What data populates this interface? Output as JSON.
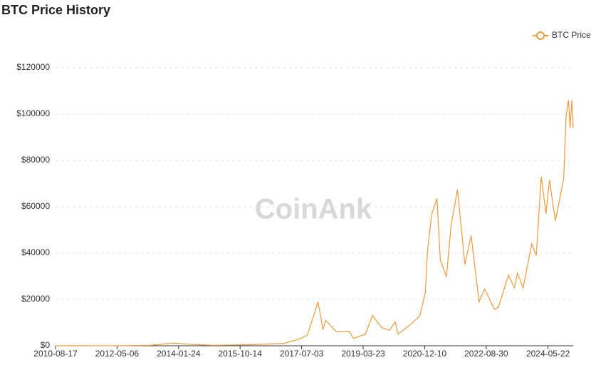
{
  "chart_data": {
    "type": "line",
    "title": "BTC Price History",
    "watermark": "CoinAnk",
    "x": [
      "2010-08-17",
      "2011-06-08",
      "2012-06-01",
      "2013-04-10",
      "2013-12-04",
      "2014-06-01",
      "2015-01-14",
      "2016-01-01",
      "2017-01-01",
      "2017-06-11",
      "2017-09-01",
      "2017-12-17",
      "2018-02-06",
      "2018-03-05",
      "2018-06-24",
      "2018-11-01",
      "2018-12-15",
      "2019-04-15",
      "2019-06-26",
      "2019-09-25",
      "2019-12-17",
      "2020-02-12",
      "2020-03-13",
      "2020-07-20",
      "2020-10-21",
      "2020-12-17",
      "2021-01-08",
      "2021-02-21",
      "2021-04-14",
      "2021-05-19",
      "2021-07-20",
      "2021-09-06",
      "2021-11-10",
      "2022-01-24",
      "2022-03-29",
      "2022-06-18",
      "2022-08-14",
      "2022-11-21",
      "2023-01-01",
      "2023-04-14",
      "2023-06-15",
      "2023-07-14",
      "2023-09-11",
      "2023-12-08",
      "2024-01-23",
      "2024-03-14",
      "2024-05-01",
      "2024-06-06",
      "2024-08-05",
      "2024-10-29",
      "2024-11-22",
      "2024-12-17",
      "2025-01-02",
      "2025-01-20",
      "2025-02-03"
    ],
    "series": [
      {
        "name": "BTC Price",
        "color": "#ee9a3a",
        "values": [
          0.07,
          30,
          5,
          200,
          1150,
          600,
          200,
          430,
          1000,
          2900,
          4700,
          19000,
          7000,
          11000,
          6000,
          6300,
          3200,
          5000,
          13000,
          8000,
          6600,
          10300,
          5000,
          9200,
          12900,
          23000,
          41000,
          57000,
          63500,
          37000,
          29800,
          52000,
          67500,
          35000,
          47500,
          19000,
          24500,
          15800,
          16600,
          30500,
          25000,
          31400,
          25000,
          44000,
          39000,
          73000,
          57000,
          71500,
          54000,
          72000,
          99000,
          106000,
          94000,
          106000,
          94000
        ]
      }
    ],
    "xlim": [
      "2010-08-17",
      "2025-02-03"
    ],
    "xticks": [
      "2010-08-17",
      "2012-05-06",
      "2014-01-24",
      "2015-10-14",
      "2017-07-03",
      "2019-03-23",
      "2020-12-10",
      "2022-08-30",
      "2024-05-22"
    ],
    "ylim": [
      0,
      120000
    ],
    "yticks": [
      {
        "value": 0,
        "label": "$0"
      },
      {
        "value": 20000,
        "label": "$20000"
      },
      {
        "value": 40000,
        "label": "$40000"
      },
      {
        "value": 60000,
        "label": "$60000"
      },
      {
        "value": 80000,
        "label": "$80000"
      },
      {
        "value": 100000,
        "label": "$100000"
      },
      {
        "value": 120000,
        "label": "$120000"
      }
    ],
    "grid": true,
    "legend": "top-right"
  }
}
